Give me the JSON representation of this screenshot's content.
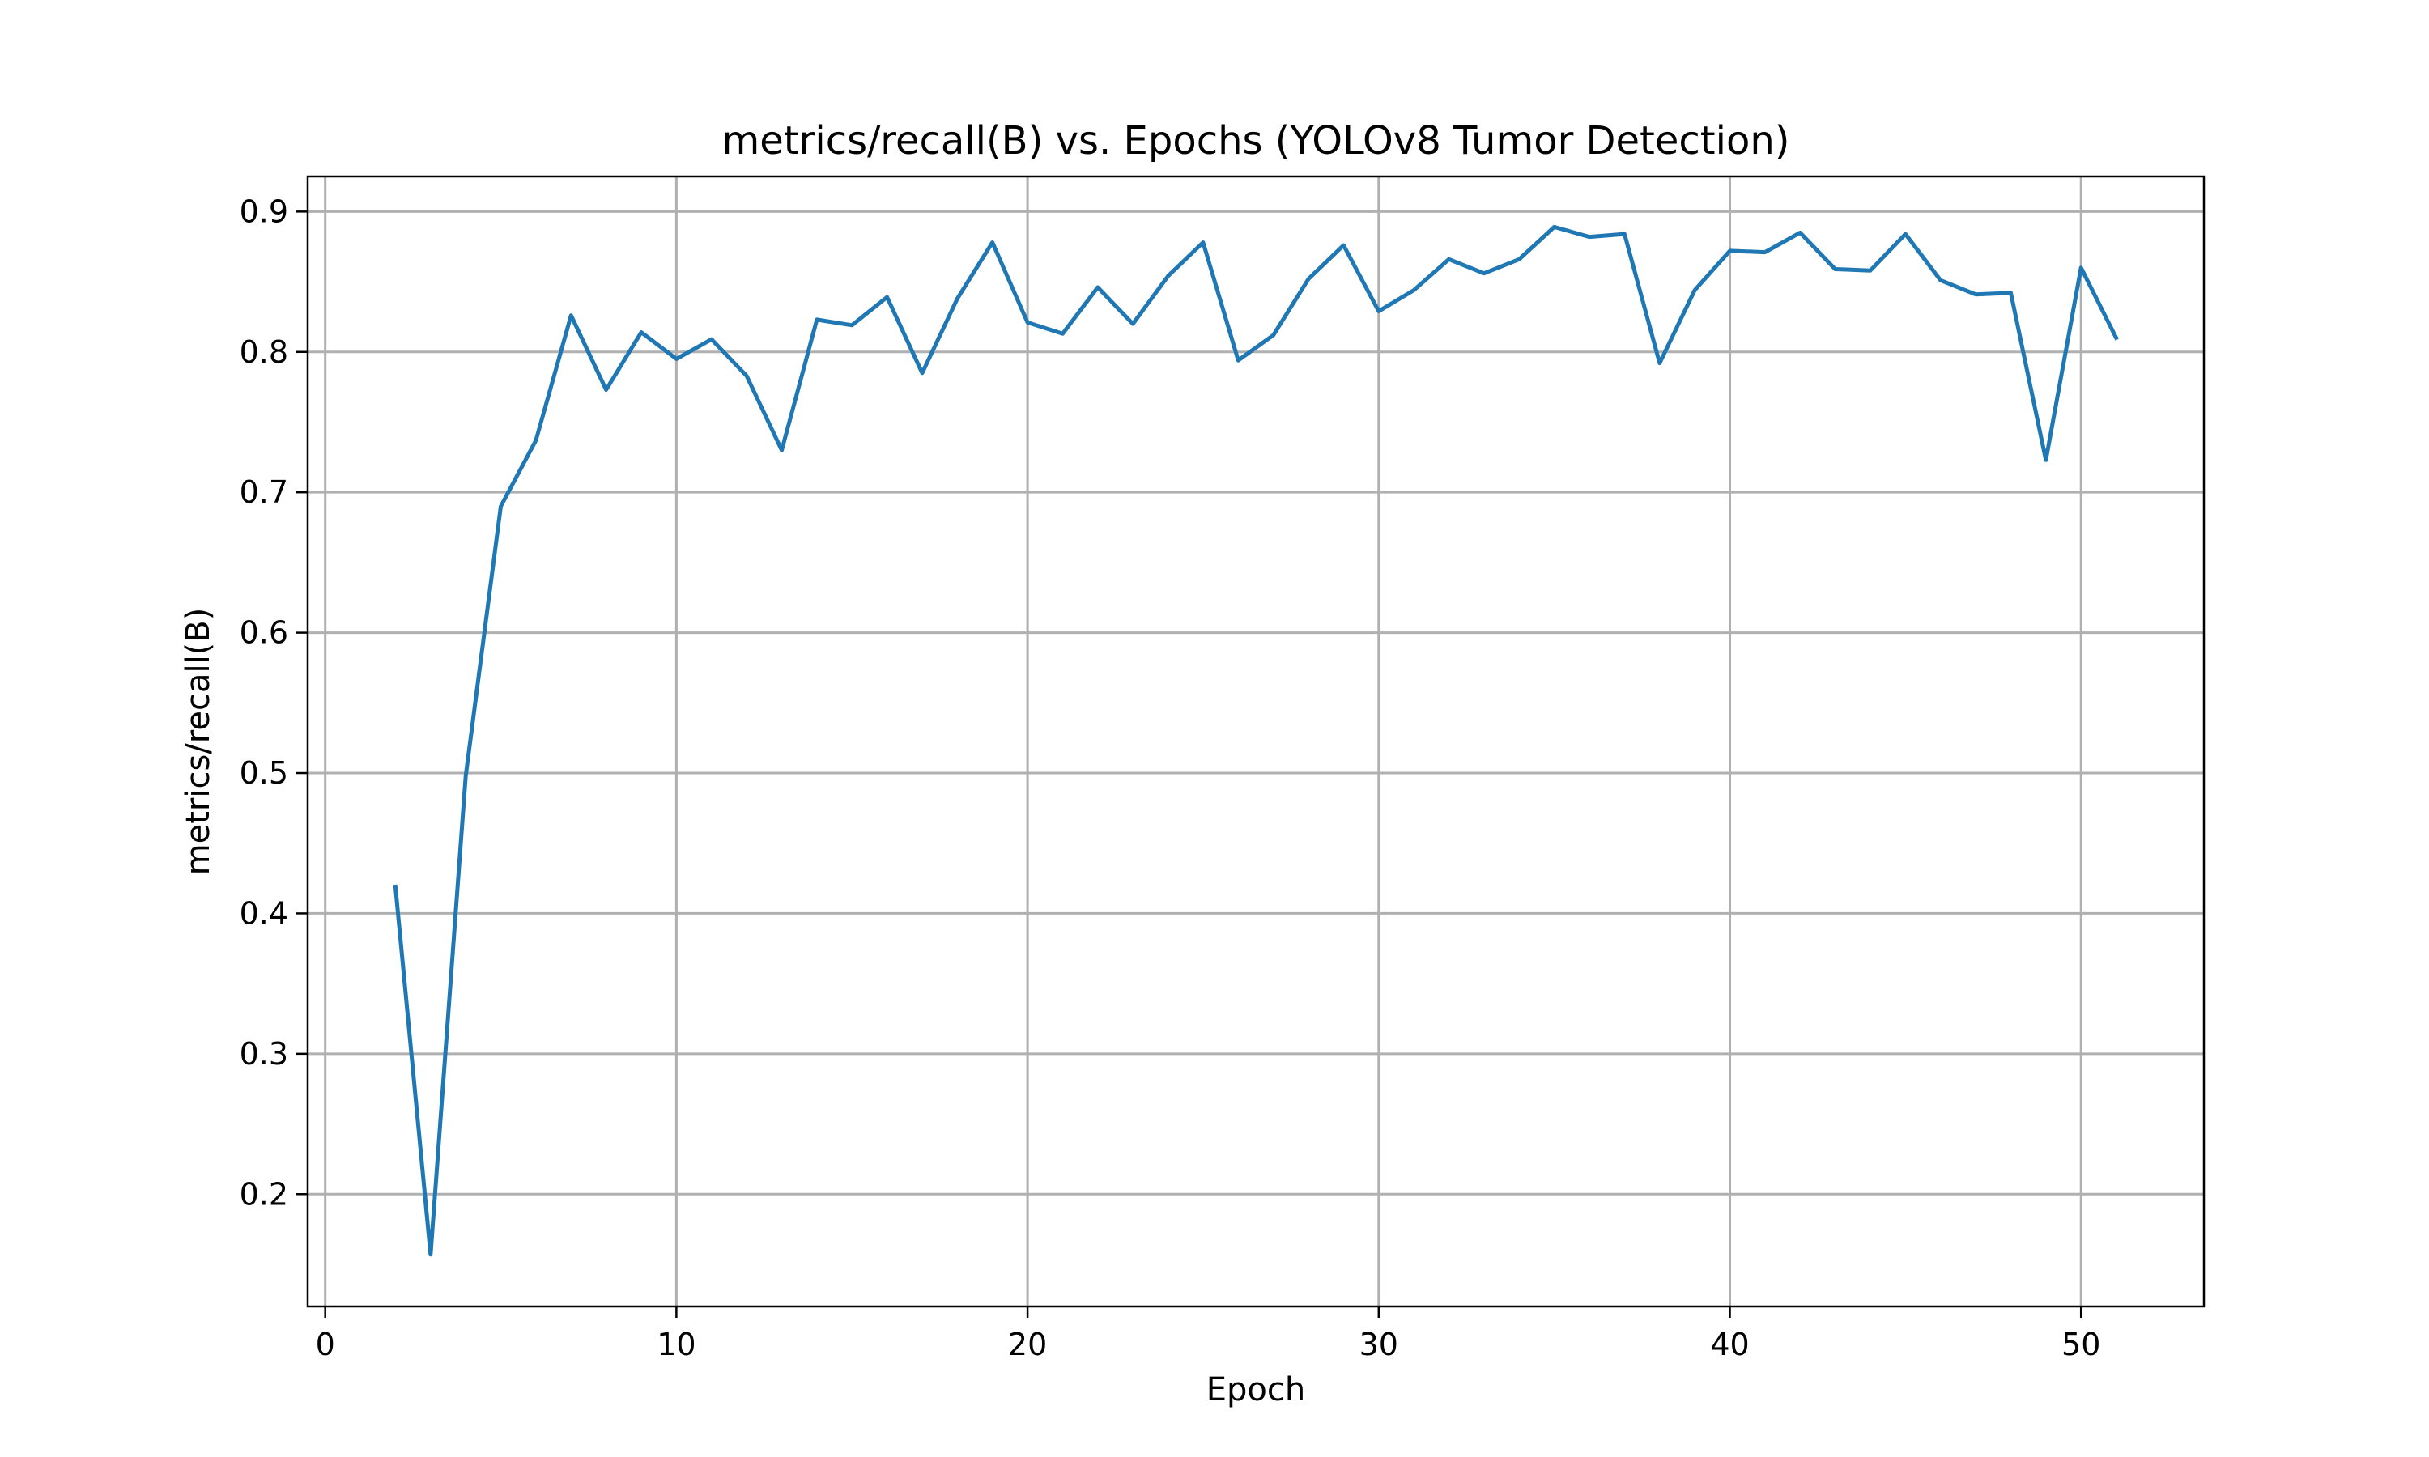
{
  "chart_data": {
    "type": "line",
    "title": "metrics/recall(B) vs. Epochs (YOLOv8 Tumor Detection)",
    "xlabel": "Epoch",
    "ylabel": "metrics/recall(B)",
    "xlim": [
      -0.5,
      53.5
    ],
    "ylim": [
      0.12,
      0.925
    ],
    "xticks": [
      0,
      10,
      20,
      30,
      40,
      50
    ],
    "yticks": [
      0.2,
      0.3,
      0.4,
      0.5,
      0.6,
      0.7,
      0.8,
      0.9
    ],
    "xtick_labels": [
      "0",
      "10",
      "20",
      "30",
      "40",
      "50"
    ],
    "ytick_labels": [
      "0.2",
      "0.3",
      "0.4",
      "0.5",
      "0.6",
      "0.7",
      "0.8",
      "0.9"
    ],
    "grid": true,
    "line_color": "#1f77b4",
    "series": [
      {
        "x": [
          2,
          3,
          4,
          5,
          6,
          7,
          8,
          9,
          10,
          11,
          12,
          13,
          14,
          15,
          16,
          17,
          18,
          19,
          20,
          21,
          22,
          23,
          24,
          25,
          26,
          27,
          28,
          29,
          30,
          31,
          32,
          33,
          34,
          35,
          36,
          37,
          38,
          39,
          40,
          41,
          42,
          43,
          44,
          45,
          46,
          47,
          48,
          49,
          50,
          51
        ],
        "values": [
          0.419,
          0.157,
          0.498,
          0.69,
          0.737,
          0.826,
          0.773,
          0.814,
          0.795,
          0.809,
          0.783,
          0.73,
          0.823,
          0.819,
          0.839,
          0.785,
          0.838,
          0.878,
          0.821,
          0.813,
          0.846,
          0.82,
          0.854,
          0.878,
          0.794,
          0.812,
          0.852,
          0.876,
          0.829,
          0.844,
          0.866,
          0.856,
          0.866,
          0.889,
          0.882,
          0.884,
          0.792,
          0.844,
          0.872,
          0.871,
          0.885,
          0.859,
          0.858,
          0.884,
          0.851,
          0.841,
          0.842,
          0.723,
          0.86,
          0.81
        ]
      }
    ]
  }
}
